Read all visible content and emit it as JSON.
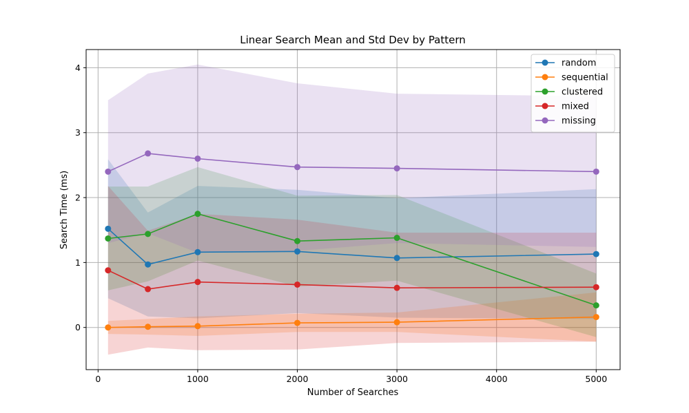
{
  "chart_data": {
    "type": "line",
    "title": "Linear Search Mean and Std Dev by Pattern",
    "xlabel": "Number of Searches",
    "ylabel": "Search Time (ms)",
    "xlim": [
      -120,
      5240
    ],
    "ylim": [
      -0.65,
      4.28
    ],
    "x_ticks": [
      0,
      1000,
      2000,
      3000,
      4000,
      5000
    ],
    "y_ticks": [
      0,
      1,
      2,
      3,
      4
    ],
    "grid": true,
    "legend_position": "top-right",
    "x": [
      100,
      500,
      1000,
      2000,
      3000,
      5000
    ],
    "series": [
      {
        "name": "random",
        "color": "#1f77b4",
        "mean": [
          1.52,
          0.97,
          1.16,
          1.17,
          1.07,
          1.13
        ],
        "std": [
          1.07,
          0.8,
          1.02,
          0.95,
          0.92,
          1.0
        ]
      },
      {
        "name": "sequential",
        "color": "#ff7f0e",
        "mean": [
          0.0,
          0.01,
          0.02,
          0.07,
          0.08,
          0.16
        ],
        "std": [
          0.1,
          0.12,
          0.15,
          0.14,
          0.15,
          0.38
        ]
      },
      {
        "name": "clustered",
        "color": "#2ca02c",
        "mean": [
          1.37,
          1.44,
          1.75,
          1.33,
          1.38,
          0.34
        ],
        "std": [
          0.8,
          0.73,
          0.72,
          0.7,
          0.66,
          0.49
        ]
      },
      {
        "name": "mixed",
        "color": "#d62728",
        "mean": [
          0.88,
          0.59,
          0.7,
          0.66,
          0.61,
          0.62
        ],
        "std": [
          1.3,
          0.9,
          1.05,
          1.0,
          0.85,
          0.84
        ]
      },
      {
        "name": "missing",
        "color": "#9467bd",
        "mean": [
          2.4,
          2.68,
          2.6,
          2.47,
          2.45,
          2.4
        ],
        "std": [
          1.1,
          1.23,
          1.45,
          1.29,
          1.15,
          1.16
        ]
      }
    ]
  }
}
